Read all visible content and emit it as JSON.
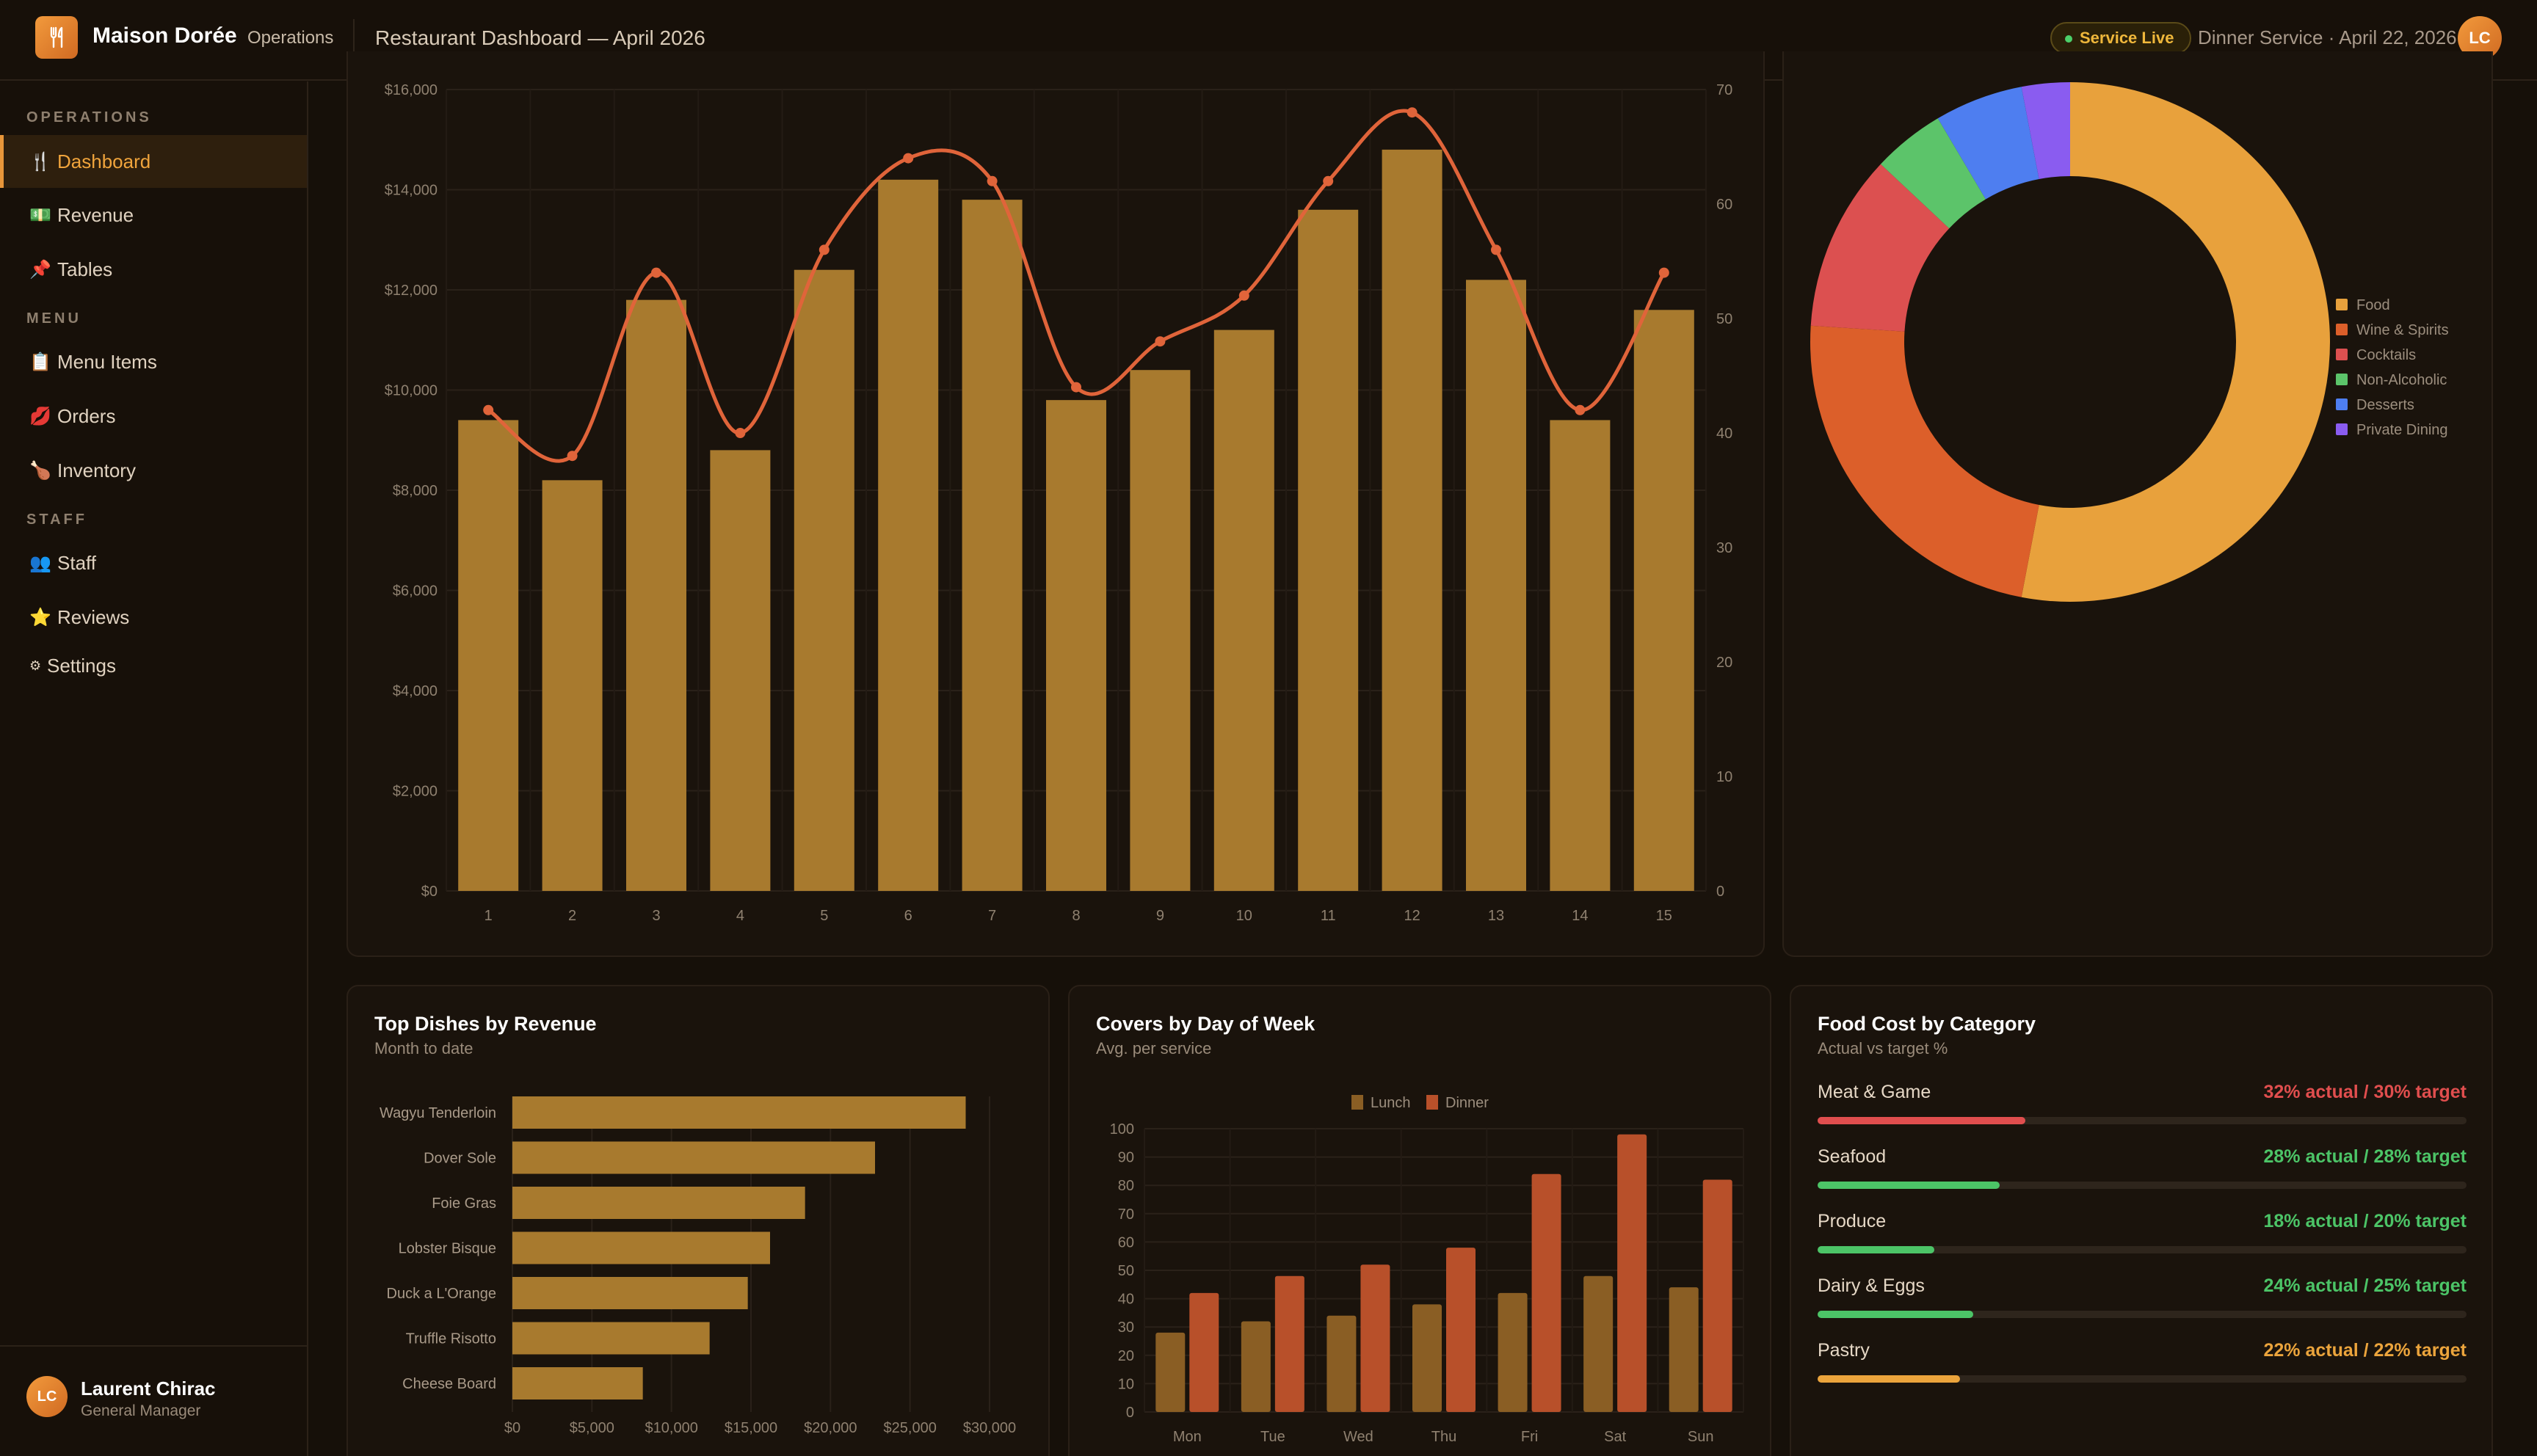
{
  "header": {
    "brand": "Maison Dorée",
    "brand_sub": "Operations",
    "title": "Restaurant Dashboard — April 2026",
    "status_badge": "Service Live",
    "service_text": "Dinner Service · April 22, 2026",
    "avatar_initials": "LC"
  },
  "sidebar": {
    "sections": [
      {
        "label": "OPERATIONS"
      },
      {
        "label": "MENU"
      },
      {
        "label": "STAFF"
      }
    ],
    "items": [
      {
        "label": "Dashboard",
        "icon": "🍴",
        "icon_name": "fork-knife-icon",
        "active": true
      },
      {
        "label": "Revenue",
        "icon": "💵",
        "icon_name": "banknote-icon"
      },
      {
        "label": "Tables",
        "icon": "📌",
        "icon_name": "pin-icon"
      },
      {
        "label": "Menu Items",
        "icon": "📋",
        "icon_name": "clipboard-icon"
      },
      {
        "label": "Orders",
        "icon": "💋",
        "icon_name": "lips-icon"
      },
      {
        "label": "Inventory",
        "icon": "🍗",
        "icon_name": "drumstick-icon"
      },
      {
        "label": "Staff",
        "icon": "👥",
        "icon_name": "people-icon"
      },
      {
        "label": "Reviews",
        "icon": "⭐",
        "icon_name": "star-icon"
      },
      {
        "label": "Settings",
        "icon": "⚙",
        "icon_name": "gear-icon"
      }
    ],
    "user": {
      "initials": "LC",
      "name": "Laurent Chirac",
      "role": "General Manager"
    }
  },
  "chart_data": [
    {
      "type": "bar",
      "categories": [
        "1",
        "2",
        "3",
        "4",
        "5",
        "6",
        "7",
        "8",
        "9",
        "10",
        "11",
        "12",
        "13",
        "14",
        "15"
      ],
      "series": [
        {
          "values": [
            9400,
            8200,
            11800,
            8800,
            12400,
            14200,
            13800,
            9800,
            10400,
            11200,
            13600,
            14800,
            12200,
            9400,
            11600
          ],
          "color": "#a87a2e"
        },
        {
          "type": "line",
          "axis": "right",
          "values": [
            42,
            38,
            54,
            40,
            56,
            64,
            62,
            44,
            48,
            52,
            62,
            68,
            56,
            42,
            54
          ],
          "color": "#e0643a"
        }
      ],
      "yticks_left": [
        "$0",
        "$2,000",
        "$4,000",
        "$6,000",
        "$8,000",
        "$10,000",
        "$12,000",
        "$14,000",
        "$16,000"
      ],
      "yticks_right": [
        "0",
        "10",
        "20",
        "30",
        "40",
        "50",
        "60",
        "70"
      ],
      "ylim": [
        0,
        16000
      ],
      "ylim_right": [
        0,
        70
      ],
      "grid": true
    },
    {
      "type": "pie",
      "labels": [
        "Food",
        "Wine & Spirits",
        "Cocktails",
        "Non-Alcoholic",
        "Desserts",
        "Private Dining"
      ],
      "values": [
        53,
        23,
        11,
        4.5,
        5.5,
        3
      ],
      "colors": [
        "#e8a13c",
        "#dc5f2a",
        "#dc5050",
        "#5cc46a",
        "#4e7ef0",
        "#8a5cf0"
      ],
      "legend": "right"
    },
    {
      "type": "bar",
      "orientation": "horizontal",
      "title": "Top Dishes by Revenue",
      "subtitle": "Month to date",
      "categories": [
        "Wagyu Tenderloin",
        "Dover Sole",
        "Foie Gras",
        "Lobster Bisque",
        "Duck a L'Orange",
        "Truffle Risotto",
        "Cheese Board"
      ],
      "values": [
        28500,
        22800,
        18400,
        16200,
        14800,
        12400,
        8200
      ],
      "xticks": [
        "$0",
        "$5,000",
        "$10,000",
        "$15,000",
        "$20,000",
        "$25,000",
        "$30,000"
      ],
      "xlim": [
        0,
        30000
      ],
      "color": "#a87a2e"
    },
    {
      "type": "bar",
      "title": "Covers by Day of Week",
      "subtitle": "Avg. per service",
      "categories": [
        "Mon",
        "Tue",
        "Wed",
        "Thu",
        "Fri",
        "Sat",
        "Sun"
      ],
      "series": [
        {
          "name": "Lunch",
          "values": [
            28,
            32,
            34,
            38,
            42,
            48,
            44
          ],
          "color": "#8a5e24"
        },
        {
          "name": "Dinner",
          "values": [
            42,
            48,
            52,
            58,
            84,
            98,
            82
          ],
          "color": "#b8502a"
        }
      ],
      "yticks": [
        "0",
        "10",
        "20",
        "30",
        "40",
        "50",
        "60",
        "70",
        "80",
        "90",
        "100"
      ],
      "ylim": [
        0,
        100
      ],
      "legend": "top"
    }
  ],
  "food_cost": {
    "title": "Food Cost by Category",
    "subtitle": "Actual vs target %",
    "rows": [
      {
        "name": "Meat & Game",
        "value_text": "32% actual / 30% target",
        "fill": 0.32,
        "color": "#e04e4e"
      },
      {
        "name": "Seafood",
        "value_text": "28% actual / 28% target",
        "fill": 0.28,
        "color": "#4cc467"
      },
      {
        "name": "Produce",
        "value_text": "18% actual / 20% target",
        "fill": 0.18,
        "color": "#4cc467"
      },
      {
        "name": "Dairy & Eggs",
        "value_text": "24% actual / 25% target",
        "fill": 0.24,
        "color": "#4cc467"
      },
      {
        "name": "Pastry",
        "value_text": "22% actual / 22% target",
        "fill": 0.22,
        "color": "#eba43c"
      }
    ]
  }
}
